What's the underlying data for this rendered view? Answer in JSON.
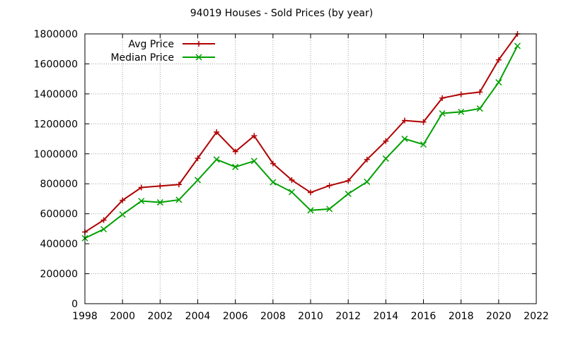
{
  "chart_data": {
    "type": "line",
    "title": "94019 Houses - Sold Prices (by year)",
    "xlabel": "",
    "ylabel": "",
    "xlim": [
      1998,
      2022
    ],
    "ylim": [
      0,
      1800000
    ],
    "xticks": [
      1998,
      2000,
      2002,
      2004,
      2006,
      2008,
      2010,
      2012,
      2014,
      2016,
      2018,
      2020,
      2022
    ],
    "yticks": [
      0,
      200000,
      400000,
      600000,
      800000,
      1000000,
      1200000,
      1400000,
      1600000,
      1800000
    ],
    "grid": true,
    "legend_position": "top-left",
    "x": [
      1998,
      1999,
      2000,
      2001,
      2002,
      2003,
      2004,
      2005,
      2006,
      2007,
      2008,
      2009,
      2010,
      2011,
      2012,
      2013,
      2014,
      2015,
      2016,
      2017,
      2018,
      2019,
      2020,
      2021
    ],
    "series": [
      {
        "name": "Avg Price",
        "color": "#b00000",
        "marker": "plus",
        "values": [
          478000,
          558000,
          690000,
          775000,
          785000,
          795000,
          970000,
          1145000,
          1015000,
          1120000,
          935000,
          825000,
          742000,
          788000,
          820000,
          962000,
          1085000,
          1222000,
          1212000,
          1372000,
          1397000,
          1412000,
          1627000,
          1800000
        ]
      },
      {
        "name": "Median Price",
        "color": "#00a000",
        "marker": "x",
        "values": [
          437000,
          497000,
          595000,
          685000,
          676000,
          693000,
          825000,
          962000,
          912000,
          952000,
          810000,
          745000,
          623000,
          632000,
          733000,
          813000,
          968000,
          1100000,
          1062000,
          1270000,
          1280000,
          1302000,
          1477000,
          1720000
        ]
      }
    ]
  }
}
